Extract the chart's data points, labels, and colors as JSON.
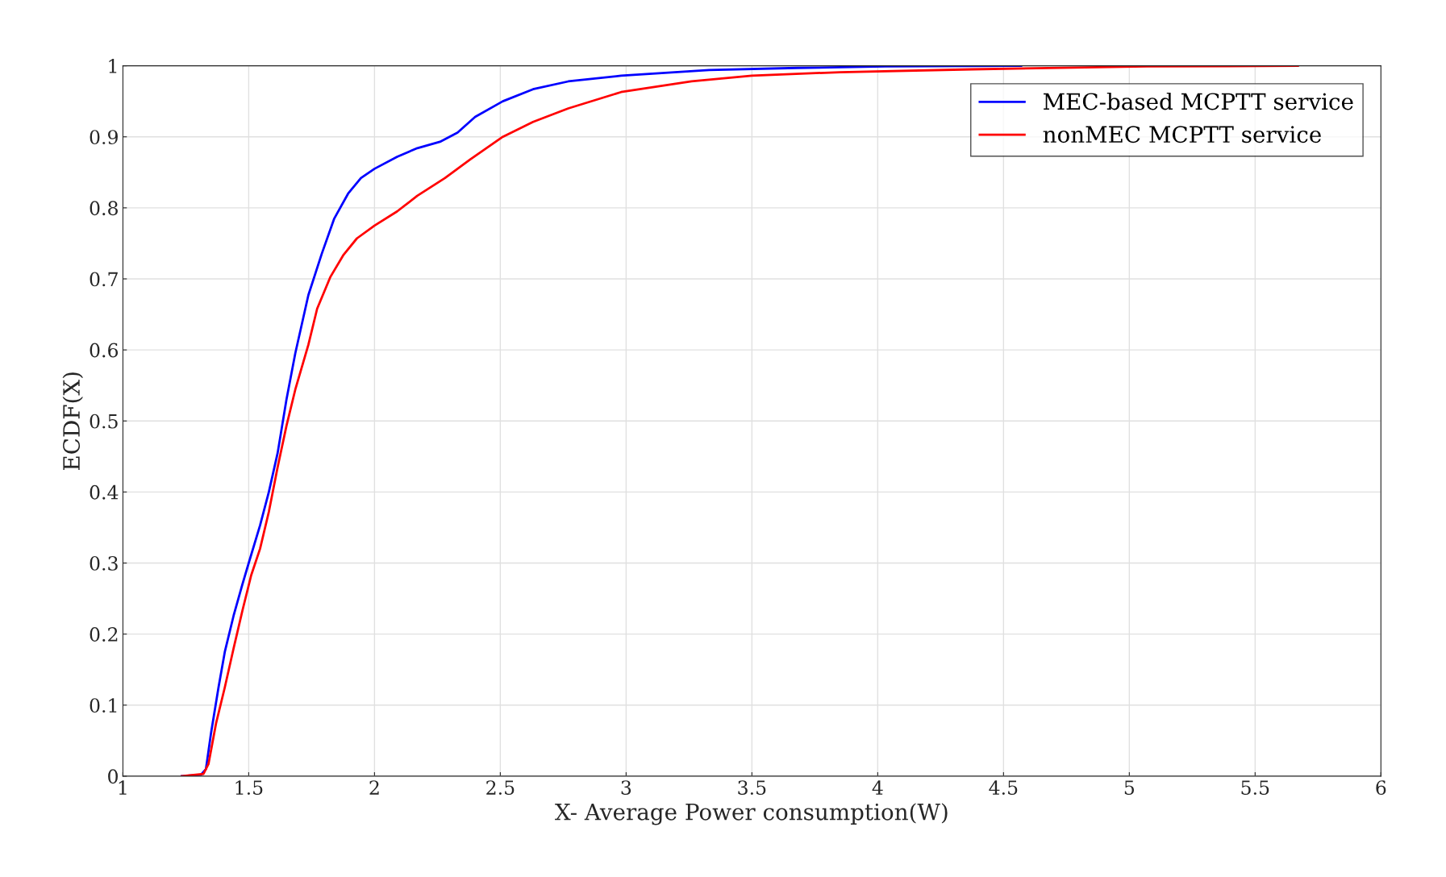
{
  "chart_data": {
    "type": "line",
    "xlabel": "X- Average Power consumption(W)",
    "ylabel": "ECDF(X)",
    "xlim": [
      1,
      6
    ],
    "xticks": [
      1,
      1.5,
      2,
      2.5,
      3,
      3.5,
      4,
      4.5,
      5,
      5.5,
      6
    ],
    "ylim": [
      0,
      1
    ],
    "yticks": [
      0,
      0.1,
      0.2,
      0.3,
      0.4,
      0.5,
      0.6,
      0.7,
      0.8,
      0.9,
      1
    ],
    "grid": true,
    "legend": "top right",
    "line_style": "solid",
    "marker": "none",
    "series": [
      {
        "name": "MEC-based MCPTT service",
        "color": "#0000ff",
        "x": [
          1.234,
          1.31,
          1.33,
          1.35,
          1.38,
          1.405,
          1.44,
          1.475,
          1.5,
          1.545,
          1.58,
          1.615,
          1.65,
          1.685,
          1.737,
          1.79,
          1.84,
          1.895,
          1.946,
          2.0,
          2.09,
          2.17,
          2.26,
          2.33,
          2.4,
          2.51,
          2.63,
          2.77,
          2.98,
          3.33,
          3.68,
          4.03,
          4.57
        ],
        "values": [
          0,
          0.002,
          0.01,
          0.06,
          0.125,
          0.175,
          0.226,
          0.27,
          0.3,
          0.353,
          0.4,
          0.455,
          0.53,
          0.595,
          0.677,
          0.735,
          0.785,
          0.82,
          0.842,
          0.855,
          0.872,
          0.884,
          0.893,
          0.906,
          0.928,
          0.95,
          0.967,
          0.978,
          0.986,
          0.994,
          0.997,
          0.999,
          1.0
        ]
      },
      {
        "name": "nonMEC MCPTT service",
        "color": "#ff0000",
        "x": [
          1.234,
          1.32,
          1.34,
          1.37,
          1.405,
          1.44,
          1.475,
          1.51,
          1.545,
          1.58,
          1.615,
          1.65,
          1.685,
          1.737,
          1.772,
          1.825,
          1.877,
          1.93,
          2.0,
          2.09,
          2.17,
          2.28,
          2.38,
          2.51,
          2.63,
          2.77,
          2.98,
          3.26,
          3.5,
          3.85,
          4.375,
          5.07,
          5.67
        ],
        "values": [
          0,
          0.003,
          0.017,
          0.074,
          0.125,
          0.18,
          0.233,
          0.283,
          0.32,
          0.372,
          0.435,
          0.493,
          0.544,
          0.607,
          0.658,
          0.703,
          0.734,
          0.757,
          0.775,
          0.795,
          0.817,
          0.842,
          0.868,
          0.9,
          0.921,
          0.94,
          0.963,
          0.978,
          0.986,
          0.991,
          0.995,
          0.999,
          1.0
        ]
      }
    ]
  }
}
